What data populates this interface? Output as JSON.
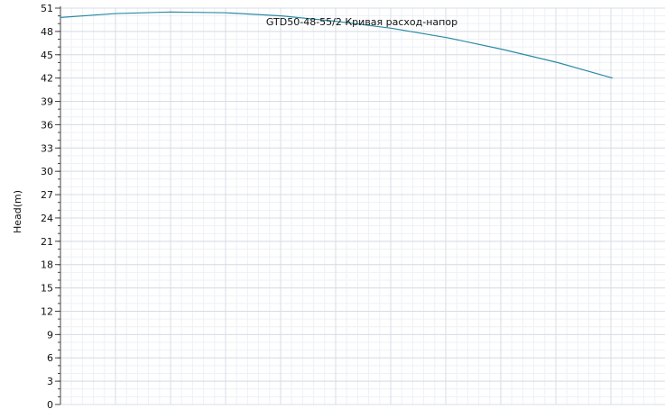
{
  "chart_data": {
    "type": "line",
    "title": "GTD50-48-55/2 Кривая расход-напор",
    "xlabel": "",
    "ylabel": "Head(m)",
    "ylim": [
      0,
      51
    ],
    "yticks": [
      "0",
      "3",
      "6",
      "9",
      "12",
      "15",
      "18",
      "21",
      "24",
      "27",
      "30",
      "33",
      "36",
      "39",
      "42",
      "45",
      "48",
      "51"
    ],
    "grid": true,
    "series": [
      {
        "x": [
          0,
          5,
          10,
          15,
          20,
          25,
          30,
          35,
          40,
          45,
          50
        ],
        "values": [
          49.8,
          50.3,
          50.5,
          50.4,
          50.0,
          49.3,
          48.4,
          47.2,
          45.7,
          44.0,
          42.0
        ],
        "color": "#2a8aa6"
      }
    ],
    "colors": {
      "grid_major": "#d7dde6",
      "grid_minor": "#eef1f5",
      "axis": "#444444"
    }
  }
}
